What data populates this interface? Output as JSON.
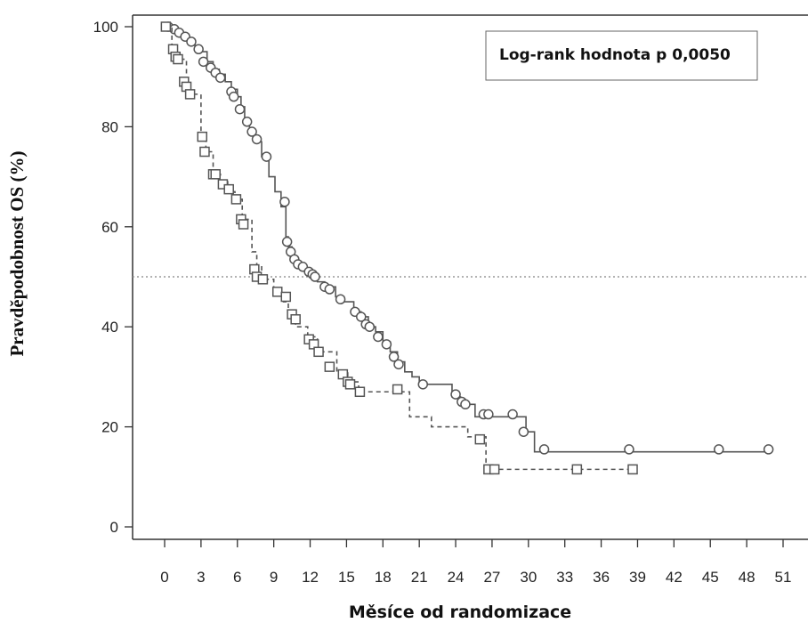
{
  "chart_data": {
    "type": "line",
    "title": "",
    "xlabel": "Měsíce od randomizace",
    "ylabel": "Pravděpodobnost OS (%)",
    "xlim": [
      0,
      51
    ],
    "ylim": [
      0,
      100
    ],
    "x_ticks": [
      "0",
      "3",
      "6",
      "9",
      "12",
      "15",
      "18",
      "21",
      "24",
      "27",
      "30",
      "33",
      "36",
      "39",
      "42",
      "45",
      "48",
      "51"
    ],
    "y_ticks": [
      "0",
      "20",
      "40",
      "60",
      "80",
      "100"
    ],
    "reference_line": {
      "y": 50,
      "style": "dotted"
    },
    "annotation": "Log-rank hodnota p 0,0050",
    "grid": false,
    "series": [
      {
        "style": "solid",
        "marker": "circle",
        "color": "#555555",
        "steps": [
          [
            0,
            100
          ],
          [
            0.5,
            99.5
          ],
          [
            1.0,
            99
          ],
          [
            1.5,
            98
          ],
          [
            2.0,
            97
          ],
          [
            2.5,
            96.2
          ],
          [
            3.0,
            95
          ],
          [
            3.5,
            93
          ],
          [
            4.0,
            91.5
          ],
          [
            4.5,
            90.5
          ],
          [
            5.0,
            89
          ],
          [
            5.5,
            87.5
          ],
          [
            6.0,
            86
          ],
          [
            6.3,
            84
          ],
          [
            6.6,
            81
          ],
          [
            7.0,
            79
          ],
          [
            7.4,
            77
          ],
          [
            8.0,
            74
          ],
          [
            8.6,
            70
          ],
          [
            9.1,
            67
          ],
          [
            9.6,
            64
          ],
          [
            10.0,
            58
          ],
          [
            10.2,
            56
          ],
          [
            10.5,
            54
          ],
          [
            10.9,
            53
          ],
          [
            11.2,
            52
          ],
          [
            11.7,
            51
          ],
          [
            12.1,
            50
          ],
          [
            12.6,
            49
          ],
          [
            13.2,
            48
          ],
          [
            14.1,
            46
          ],
          [
            14.8,
            45
          ],
          [
            15.6,
            43
          ],
          [
            16.2,
            42
          ],
          [
            16.8,
            40
          ],
          [
            17.4,
            39
          ],
          [
            18.0,
            37
          ],
          [
            18.6,
            35
          ],
          [
            19.2,
            33
          ],
          [
            19.8,
            31
          ],
          [
            20.4,
            30
          ],
          [
            21.0,
            28.5
          ],
          [
            23.7,
            26
          ],
          [
            24.4,
            24.5
          ],
          [
            25.6,
            22
          ],
          [
            29.8,
            19
          ],
          [
            30.5,
            15
          ],
          [
            50.0,
            15
          ]
        ],
        "markers": [
          [
            0.3,
            100
          ],
          [
            0.8,
            99.5
          ],
          [
            1.2,
            98.8
          ],
          [
            1.7,
            98
          ],
          [
            2.2,
            97
          ],
          [
            2.8,
            95.5
          ],
          [
            3.2,
            93
          ],
          [
            3.8,
            91.8
          ],
          [
            4.2,
            90.8
          ],
          [
            4.6,
            89.8
          ],
          [
            5.5,
            87
          ],
          [
            5.7,
            86
          ],
          [
            6.2,
            83.5
          ],
          [
            6.8,
            81
          ],
          [
            7.2,
            79
          ],
          [
            7.6,
            77.5
          ],
          [
            8.4,
            74
          ],
          [
            9.9,
            65
          ],
          [
            10.1,
            57
          ],
          [
            10.4,
            55
          ],
          [
            10.7,
            53.5
          ],
          [
            11.0,
            52.5
          ],
          [
            11.4,
            52
          ],
          [
            11.9,
            51
          ],
          [
            12.2,
            50.5
          ],
          [
            12.4,
            50
          ],
          [
            13.2,
            48
          ],
          [
            13.6,
            47.5
          ],
          [
            14.5,
            45.5
          ],
          [
            15.7,
            43
          ],
          [
            16.2,
            42
          ],
          [
            16.6,
            40.5
          ],
          [
            16.9,
            40
          ],
          [
            17.6,
            38
          ],
          [
            18.3,
            36.5
          ],
          [
            18.9,
            34
          ],
          [
            19.3,
            32.5
          ],
          [
            21.3,
            28.5
          ],
          [
            24.0,
            26.5
          ],
          [
            24.5,
            25
          ],
          [
            24.8,
            24.5
          ],
          [
            26.3,
            22.5
          ],
          [
            26.7,
            22.5
          ],
          [
            28.7,
            22.5
          ],
          [
            29.6,
            19
          ],
          [
            31.3,
            15.5
          ],
          [
            38.3,
            15.5
          ],
          [
            45.7,
            15.5
          ],
          [
            49.8,
            15.5
          ]
        ]
      },
      {
        "style": "dashed",
        "marker": "square",
        "color": "#555555",
        "steps": [
          [
            0,
            100
          ],
          [
            0.6,
            95.5
          ],
          [
            0.9,
            94
          ],
          [
            1.4,
            93.5
          ],
          [
            1.8,
            89
          ],
          [
            2.0,
            86.5
          ],
          [
            3.0,
            78
          ],
          [
            3.4,
            75
          ],
          [
            4.0,
            70.5
          ],
          [
            4.6,
            69
          ],
          [
            5.2,
            67
          ],
          [
            5.8,
            65.5
          ],
          [
            6.4,
            61.5
          ],
          [
            7.2,
            55
          ],
          [
            7.6,
            52
          ],
          [
            8.0,
            49.5
          ],
          [
            9.0,
            47
          ],
          [
            9.8,
            45
          ],
          [
            10.2,
            42.5
          ],
          [
            10.8,
            40
          ],
          [
            11.8,
            38
          ],
          [
            12.6,
            35
          ],
          [
            14.2,
            31
          ],
          [
            15.1,
            29
          ],
          [
            16.0,
            27
          ],
          [
            19.0,
            27
          ],
          [
            20.2,
            22
          ],
          [
            22.0,
            20
          ],
          [
            25.0,
            18
          ],
          [
            26.5,
            11.5
          ],
          [
            38.3,
            11.5
          ]
        ],
        "markers": [
          [
            0.1,
            100
          ],
          [
            0.7,
            95.5
          ],
          [
            0.9,
            94
          ],
          [
            1.1,
            93.5
          ],
          [
            1.6,
            89
          ],
          [
            1.8,
            88
          ],
          [
            2.1,
            86.5
          ],
          [
            3.1,
            78
          ],
          [
            3.3,
            75
          ],
          [
            4.0,
            70.5
          ],
          [
            4.2,
            70.5
          ],
          [
            4.8,
            68.5
          ],
          [
            5.3,
            67.5
          ],
          [
            5.9,
            65.5
          ],
          [
            6.3,
            61.5
          ],
          [
            6.5,
            60.5
          ],
          [
            7.4,
            51.5
          ],
          [
            7.6,
            50
          ],
          [
            8.1,
            49.5
          ],
          [
            9.3,
            47
          ],
          [
            10.0,
            46
          ],
          [
            10.5,
            42.5
          ],
          [
            10.8,
            41.5
          ],
          [
            11.9,
            37.5
          ],
          [
            12.3,
            36.5
          ],
          [
            12.7,
            35
          ],
          [
            13.6,
            32
          ],
          [
            14.7,
            30.5
          ],
          [
            15.1,
            29
          ],
          [
            15.3,
            28.5
          ],
          [
            16.1,
            27
          ],
          [
            19.2,
            27.5
          ],
          [
            26.0,
            17.5
          ],
          [
            26.7,
            11.5
          ],
          [
            27.2,
            11.5
          ],
          [
            34.0,
            11.5
          ],
          [
            38.6,
            11.5
          ]
        ]
      }
    ]
  }
}
